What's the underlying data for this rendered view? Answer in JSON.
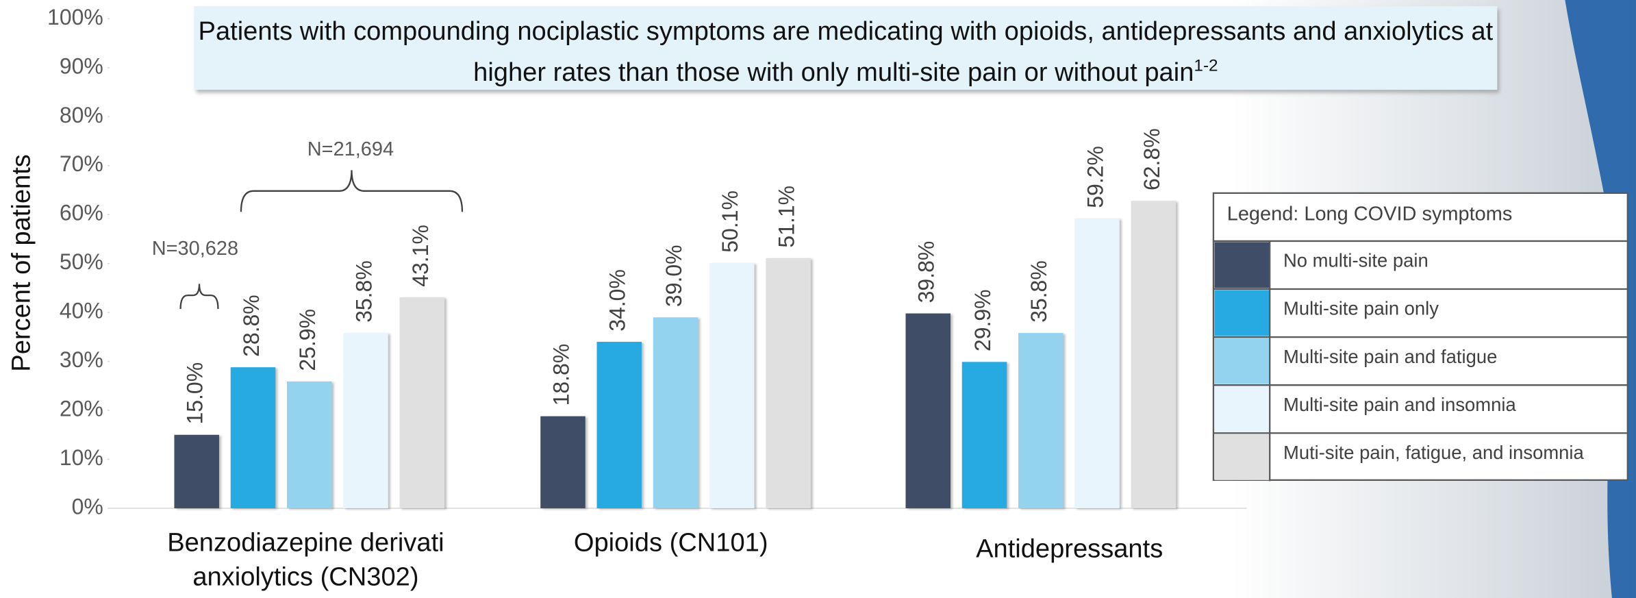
{
  "chart_data": {
    "type": "bar",
    "title": "Patients with compounding nociplastic symptoms are medicating with opioids, antidepressants and anxiolytics at higher rates than those with only multi-site pain or without pain",
    "title_superscript": "1-2",
    "y_label": "Percent of patients",
    "categories": [
      "Benzodiazepine derivati anxiolytics (CN302)",
      "Opioids (CN101)",
      "Antidepressants"
    ],
    "legend_title": "Legend: Long COVID symptoms",
    "series": [
      {
        "name": "No multi-site pain",
        "color": "#3f4d66",
        "values": [
          15.0,
          18.8,
          39.8
        ],
        "value_labels": [
          "15.0%",
          "18.8%",
          "39.8%"
        ]
      },
      {
        "name": "Multi-site pain only",
        "color": "#27a9e1",
        "values": [
          28.8,
          34.0,
          29.9
        ],
        "value_labels": [
          "28.8%",
          "34.0%",
          "29.9%"
        ]
      },
      {
        "name": "Multi-site pain and fatigue",
        "color": "#93d3f0",
        "values": [
          25.9,
          39.0,
          35.8
        ],
        "value_labels": [
          "25.9%",
          "39.0%",
          "35.8%"
        ]
      },
      {
        "name": "Multi-site pain and insomnia",
        "color": "#e8f5fc",
        "values": [
          35.8,
          50.1,
          59.2
        ],
        "value_labels": [
          "35.8%",
          "50.1%",
          "59.2%"
        ]
      },
      {
        "name": "Muti-site pain, fatigue, and insomnia",
        "color": "#e0e0e0",
        "values": [
          43.1,
          51.1,
          62.8
        ],
        "value_labels": [
          "43.1%",
          "51.1%",
          "62.8%"
        ]
      }
    ],
    "ylim": [
      0,
      100
    ],
    "yticks": [
      {
        "value": 0,
        "label": "0%"
      },
      {
        "value": 10,
        "label": "10%"
      },
      {
        "value": 20,
        "label": "20%"
      },
      {
        "value": 30,
        "label": "30%"
      },
      {
        "value": 40,
        "label": "40%"
      },
      {
        "value": 50,
        "label": "50%"
      },
      {
        "value": 60,
        "label": "60%"
      },
      {
        "value": 70,
        "label": "70%"
      },
      {
        "value": 80,
        "label": "80%"
      },
      {
        "value": 90,
        "label": "90%"
      },
      {
        "value": 100,
        "label": "100%"
      }
    ],
    "annotations": [
      "N=30,628",
      "N=21,694"
    ]
  }
}
